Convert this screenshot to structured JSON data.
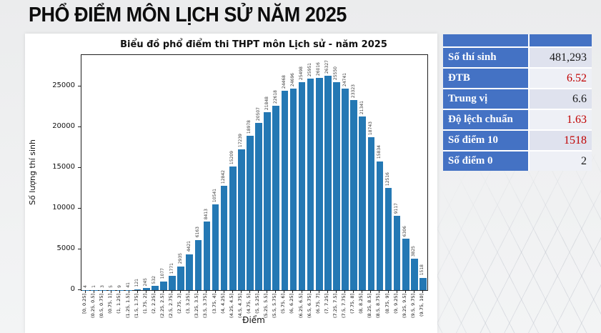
{
  "slide": {
    "title": "PHỔ ĐIỂM MÔN LỊCH SỬ NĂM 2025"
  },
  "chart_data": {
    "type": "bar",
    "title": "Biểu đồ phổ điểm thi THPT môn Lịch sử - năm 2025",
    "xlabel": "Điểm",
    "ylabel": "Số lượng thí sinh",
    "bar_color": "#2478b4",
    "grid": false,
    "ylim": [
      0,
      28860
    ],
    "y_ticks": [
      0,
      5000,
      10000,
      15000,
      20000,
      25000
    ],
    "categories": [
      "[0, 0.25]",
      "(0.25, 0.5]",
      "(0.5, 0.75]",
      "(0.75, 1]",
      "(1, 1.25]",
      "(1.25, 1.5]",
      "(1.5, 1.75]",
      "(1.75, 2]",
      "(2, 2.25]",
      "(2.25, 2.5]",
      "(2.5, 2.75]",
      "(2.75, 3]",
      "(3, 3.25]",
      "(3.25, 3.5]",
      "(3.5, 3.75]",
      "(3.75, 4]",
      "(4, 4.25]",
      "(4.25, 4.5]",
      "(4.5, 4.75]",
      "(4.75, 5]",
      "(5, 5.25]",
      "(5.25, 5.5]",
      "(5.5, 5.75]",
      "(5.75, 6]",
      "(6, 6.25]",
      "(6.25, 6.5]",
      "(6.5, 6.75]",
      "(6.75, 7]",
      "(7, 7.25]",
      "(7.25, 7.5]",
      "(7.5, 7.75]",
      "(7.75, 8]",
      "(8, 8.25]",
      "(8.25, 8.5]",
      "(8.5, 8.75]",
      "(8.75, 9]",
      "(9, 9.25]",
      "(9.25, 9.5]",
      "(9.5, 9.75]",
      "(9.75, 10]"
    ],
    "values": [
      4,
      1,
      3,
      5,
      9,
      41,
      121,
      245,
      532,
      1077,
      1771,
      2935,
      4421,
      6163,
      8413,
      10541,
      12842,
      15209,
      17239,
      18978,
      20507,
      21848,
      22618,
      24468,
      24696,
      25498,
      25951,
      26016,
      26327,
      25550,
      24741,
      23323,
      21341,
      18743,
      15834,
      12516,
      9117,
      6306,
      3825,
      1518
    ]
  },
  "stats": {
    "accent_color": "#4472c4",
    "red_color": "#c00000",
    "rows": [
      {
        "label": "Số thí sinh",
        "value": "481,293",
        "red": false
      },
      {
        "label": "ĐTB",
        "value": "6.52",
        "red": true
      },
      {
        "label": "Trung vị",
        "value": "6.6",
        "red": false
      },
      {
        "label": "Độ lệch chuẩn",
        "value": "1.63",
        "red": true
      },
      {
        "label": "Số điểm 10",
        "value": "1518",
        "red": true
      },
      {
        "label": "Số điểm 0",
        "value": "2",
        "red": false
      }
    ]
  }
}
